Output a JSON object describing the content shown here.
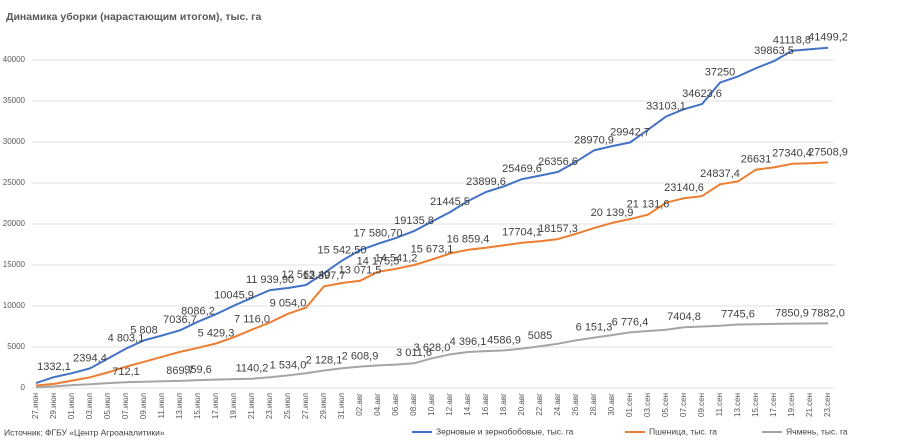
{
  "chart_data": {
    "type": "line",
    "title": "Динамика уборки (нарастающим итогом), тыс. га",
    "source": "Источник: ФГБУ «Центр Агроаналитики»",
    "categories": [
      "27.июн",
      "29.июн",
      "01.июл",
      "03.июл",
      "05.июл",
      "07.июл",
      "09.июл",
      "11.июл",
      "13.июл",
      "15.июл",
      "17.июл",
      "19.июл",
      "21.июл",
      "23.июл",
      "25.июл",
      "27.июл",
      "29.июл",
      "31.июл",
      "02.авг",
      "04.авг",
      "06.авг",
      "08.авг",
      "10.авг",
      "12.авг",
      "14.авг",
      "16.авг",
      "18.авг",
      "20.авг",
      "22.авг",
      "24.авг",
      "26.авг",
      "28.авг",
      "30.авг",
      "01.сен",
      "03.сен",
      "05.сен",
      "07.сен",
      "09.сен",
      "11.сен",
      "13.сен",
      "15.сен",
      "17.сен",
      "19.сен",
      "21.сен",
      "23.сен"
    ],
    "ylim": [
      0,
      45000
    ],
    "yticks": [
      0,
      5000,
      10000,
      15000,
      20000,
      25000,
      30000,
      35000,
      40000
    ],
    "grid": true,
    "legend": "bottom",
    "series": [
      {
        "name": "Зерновые и зернобобовые, тыс. га",
        "color": "#4472c4",
        "values": [
          600,
          1332.1,
          1800,
          2394.4,
          3600,
          4803.1,
          5808,
          6400,
          7036.7,
          8086.2,
          9000,
          10045.9,
          11000,
          11939.9,
          12200,
          12563.4,
          14000,
          15542.5,
          16800,
          17580.7,
          18300,
          19135.8,
          20300,
          21445.5,
          22800,
          23899.6,
          24600,
          25469.6,
          25900,
          26356.6,
          27600,
          28970.9,
          29500,
          29942.7,
          31500,
          33103.1,
          34000,
          34623.6,
          37250,
          38000,
          39000,
          39863.5,
          41118.8,
          41300,
          41499.2
        ],
        "value_labels": [
          null,
          "1332,1",
          null,
          "2394,4",
          null,
          "4 803,1",
          "5 808",
          null,
          "7036,7",
          "8086,2",
          null,
          "10045,9",
          null,
          "11 939,90",
          null,
          "12 563,40",
          null,
          "15 542,50",
          null,
          "17 580,70",
          null,
          "19135,8",
          null,
          "21445,5",
          null,
          "23899,6",
          null,
          "25469,6",
          null,
          "26356,6",
          null,
          "28970,9",
          null,
          "29942,7",
          null,
          "33103,1",
          null,
          "34623,6",
          "37250",
          null,
          null,
          "39863,5",
          "41118,8",
          null,
          "41499,2"
        ]
      },
      {
        "name": "Пшеница, тыс. га",
        "color": "#ed7d31",
        "values": [
          300,
          500,
          900,
          1300,
          1900,
          2600,
          3200,
          3800,
          4400,
          4900,
          5429.3,
          6200,
          7116,
          8000,
          9054,
          9800,
          12397.7,
          12800,
          13071.5,
          14175.5,
          14541.2,
          15000,
          15673.1,
          16400,
          16859.4,
          17100,
          17400,
          17704.1,
          17900,
          18157.3,
          18800,
          19500,
          20139.9,
          20600,
          21131.6,
          22600,
          23140.6,
          23400,
          24837.4,
          25200,
          26631,
          26900,
          27340.4,
          27400,
          27508.9
        ],
        "value_labels": [
          null,
          null,
          null,
          null,
          null,
          null,
          null,
          null,
          null,
          null,
          "5 429,3",
          null,
          "7 116,0",
          null,
          "9 054,0",
          null,
          "12 397,7",
          null,
          "13 071,5",
          "14 175,5",
          "14 541,2",
          null,
          "15 673,1",
          null,
          "16 859,4",
          null,
          null,
          "17704,1",
          null,
          "18157,3",
          null,
          null,
          "20 139,9",
          null,
          "21 131,6",
          null,
          "23140,6",
          null,
          "24837,4",
          null,
          "26631",
          null,
          "27340,4",
          null,
          "27508,9"
        ]
      },
      {
        "name": "Ячмень, тыс. га",
        "color": "#a5a5a5",
        "values": [
          100,
          200,
          350,
          450,
          600,
          712.1,
          760,
          820,
          869.7,
          959.6,
          1020,
          1080,
          1140.2,
          1300,
          1534,
          1800,
          2128.1,
          2400,
          2608.9,
          2750,
          2850,
          3011.6,
          3628,
          4100,
          4396.1,
          4500,
          4586.9,
          4800,
          5085,
          5400,
          5800,
          6151.3,
          6450,
          6776.4,
          6950,
          7100,
          7404.8,
          7500,
          7600,
          7745.6,
          7780,
          7820,
          7850.9,
          7870,
          7882
        ],
        "value_labels": [
          null,
          null,
          null,
          null,
          null,
          "712,1",
          null,
          null,
          "869,7",
          "959,6",
          null,
          null,
          "1140,2",
          null,
          "1 534,0",
          null,
          "2 128,1",
          null,
          "2 608,9",
          null,
          null,
          "3 011,6",
          "3 628,0",
          null,
          "4 396,1",
          null,
          "4586,9",
          null,
          "5085",
          null,
          null,
          "6 151,3",
          null,
          "6 776,4",
          null,
          null,
          "7404,8",
          null,
          null,
          "7745,6",
          null,
          null,
          "7850,9",
          null,
          "7882,0"
        ]
      }
    ]
  }
}
